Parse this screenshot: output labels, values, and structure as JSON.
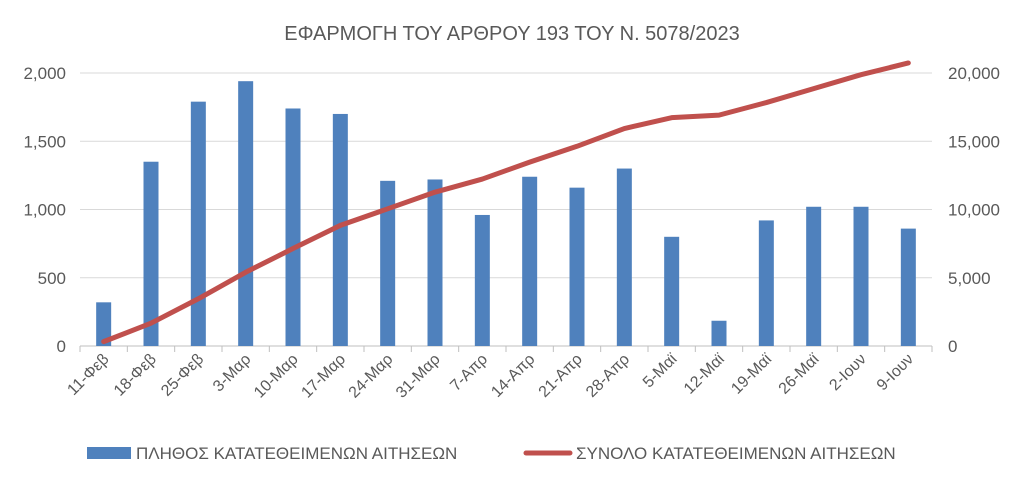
{
  "chart_data": {
    "type": "bar+line",
    "title": "ΕΦΑΡΜΟΓΗ ΤΟΥ ΑΡΘΡΟΥ 193 ΤΟΥ Ν. 5078/2023",
    "categories": [
      "11-Φεβ",
      "18-Φεβ",
      "25-Φεβ",
      "3-Μαρ",
      "10-Μαρ",
      "17-Μαρ",
      "24-Μαρ",
      "31-Μαρ",
      "7-Απρ",
      "14-Απρ",
      "21-Απρ",
      "28-Απρ",
      "5-Μαϊ",
      "12-Μαϊ",
      "19-Μαϊ",
      "26-Μαϊ",
      "2-Ιουν",
      "9-Ιουν"
    ],
    "series": [
      {
        "name": "ΠΛΗΘΟΣ ΚΑΤΑΤΕΘΕΙΜΕΝΩΝ ΑΙΤΗΣΕΩΝ",
        "type": "bar",
        "axis": "left",
        "color": "#4f81bd",
        "values": [
          320,
          1350,
          1790,
          1940,
          1740,
          1700,
          1210,
          1220,
          960,
          1240,
          1160,
          1300,
          800,
          185,
          920,
          1020,
          1020,
          860
        ]
      },
      {
        "name": "ΣΥΝΟΛΟ ΚΑΤΑΤΕΘΕΙΜΕΝΩΝ ΑΙΤΗΣΕΩΝ",
        "type": "line",
        "axis": "right",
        "color": "#c0504d",
        "values": [
          320,
          1670,
          3460,
          5400,
          7140,
          8840,
          10050,
          11270,
          12230,
          13470,
          14630,
          15930,
          16730,
          16915,
          17835,
          18855,
          19875,
          20735
        ]
      }
    ],
    "y_left": {
      "min": 0,
      "max": 2000,
      "ticks": [
        0,
        500,
        1000,
        1500,
        2000
      ],
      "tick_labels": [
        "0",
        "500",
        "1,000",
        "1,500",
        "2,000"
      ]
    },
    "y_right": {
      "min": 0,
      "max": 20000,
      "ticks": [
        0,
        5000,
        10000,
        15000,
        20000
      ],
      "tick_labels": [
        "0",
        "5,000",
        "10,000",
        "15,000",
        "20,000"
      ]
    },
    "grid": true,
    "legend_position": "bottom"
  }
}
